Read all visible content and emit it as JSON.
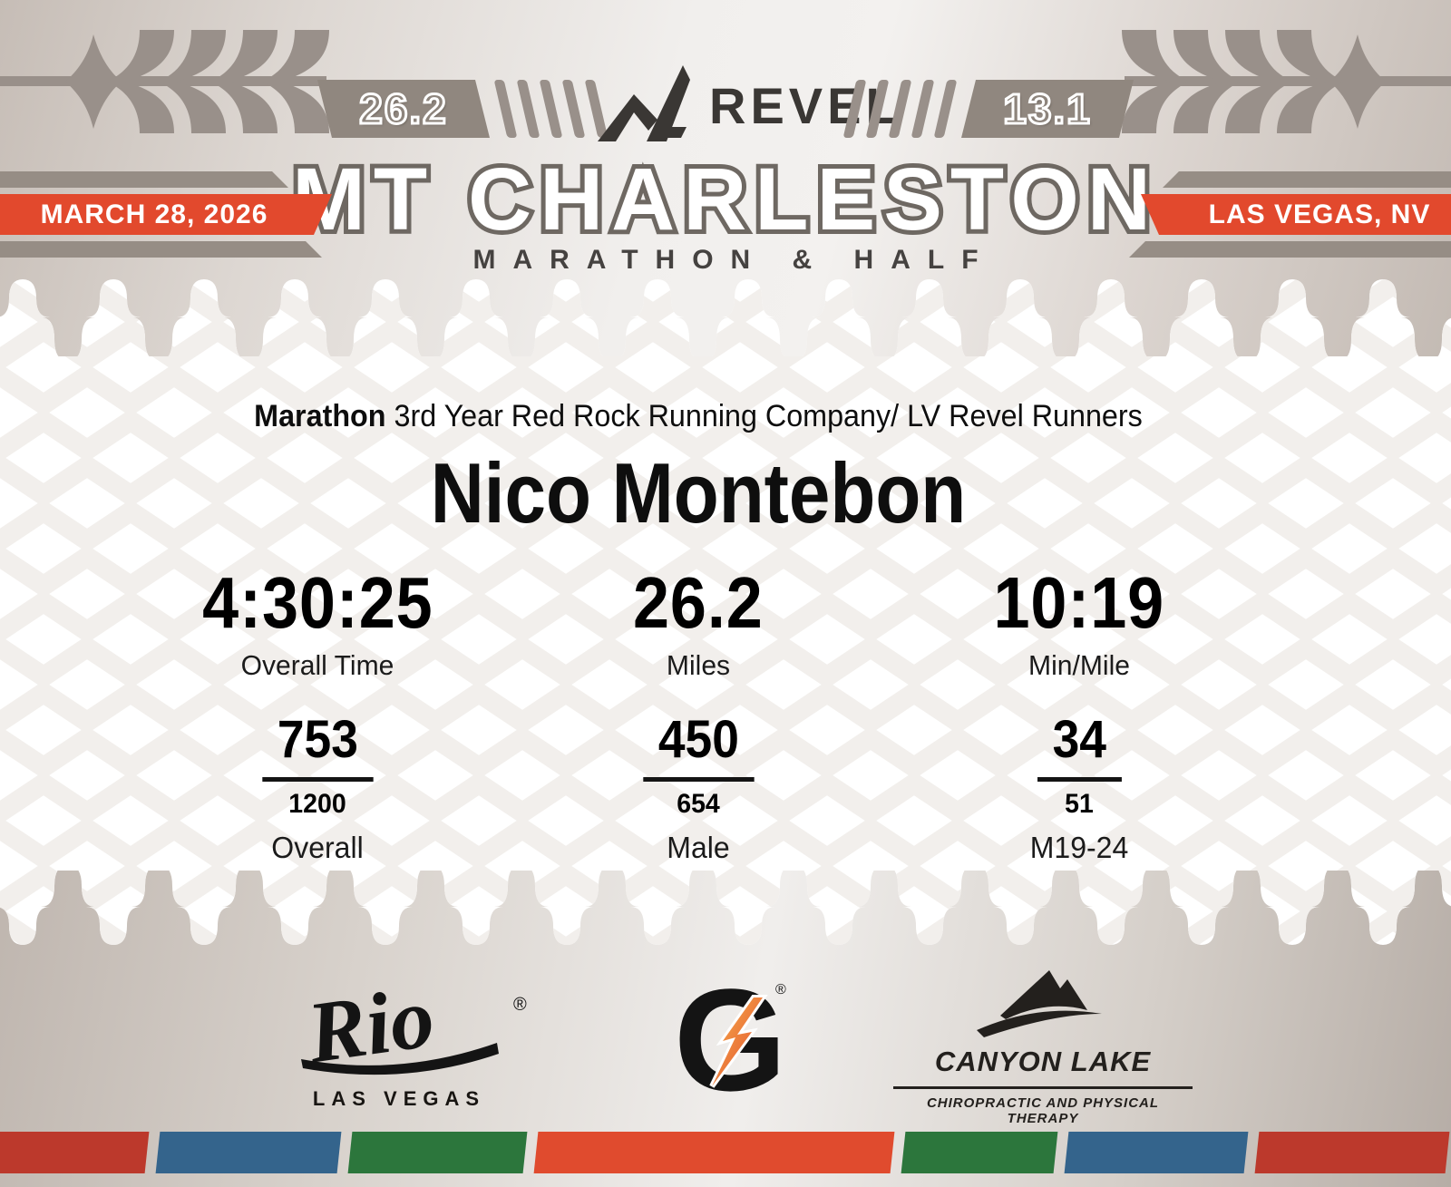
{
  "header": {
    "distance_left": "26.2",
    "brand": "REVEL",
    "distance_right": "13.1",
    "title": "MT CHARLESTON",
    "subtitle": "MARATHON & HALF",
    "date_badge": "MARCH 28, 2026",
    "location_badge": "LAS VEGAS, NV"
  },
  "runner": {
    "race_label": "Marathon",
    "description": " 3rd Year Red Rock Running Company/ LV Revel Runners",
    "name": "Nico Montebon"
  },
  "stats": [
    {
      "value": "4:30:25",
      "label": "Overall Time"
    },
    {
      "value": "26.2",
      "label": "Miles"
    },
    {
      "value": "10:19",
      "label": "Min/Mile"
    }
  ],
  "rankings": [
    {
      "place": "753",
      "total": "1200",
      "label": "Overall"
    },
    {
      "place": "450",
      "total": "654",
      "label": "Male"
    },
    {
      "place": "34",
      "total": "51",
      "label": "M19-24"
    }
  ],
  "sponsors": {
    "rio": {
      "name": "Rio",
      "reg": "®",
      "sub": "LAS VEGAS"
    },
    "gatorade": {
      "letter": "G",
      "reg": "®"
    },
    "canyon_lake": {
      "name": "CANYON LAKE",
      "sub": "CHIROPRACTIC AND PHYSICAL THERAPY"
    }
  },
  "colors": {
    "accent_red": "#e2492d",
    "taupe": "#90877f",
    "stripe_gray": "#968d85",
    "charcoal": "#3a3734",
    "pattern_gray": "#f2efec",
    "bolt_orange": "#f2913c",
    "stripe": [
      "#bc392c",
      "#34648c",
      "#2c763c",
      "#e04b2e",
      "#2c763c",
      "#34648c",
      "#bc392c"
    ]
  }
}
